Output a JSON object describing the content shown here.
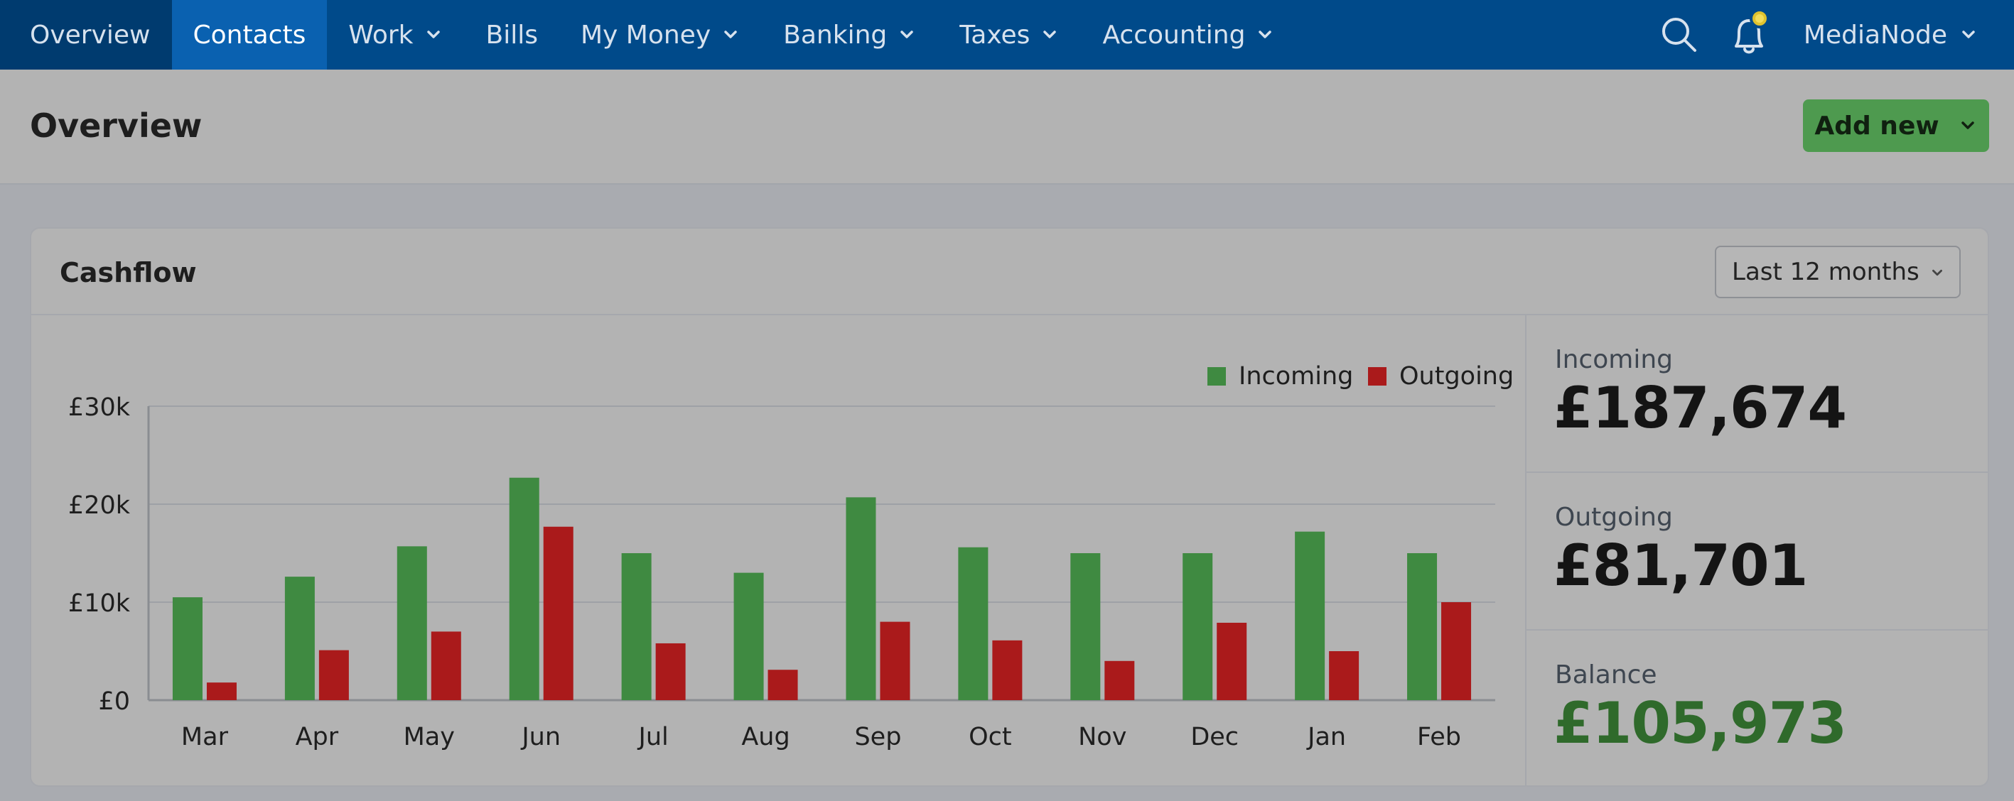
{
  "nav": {
    "items": [
      {
        "label": "Overview",
        "dropdown": false,
        "state": "home"
      },
      {
        "label": "Contacts",
        "dropdown": false,
        "state": "active"
      },
      {
        "label": "Work",
        "dropdown": true,
        "state": ""
      },
      {
        "label": "Bills",
        "dropdown": false,
        "state": ""
      },
      {
        "label": "My Money",
        "dropdown": true,
        "state": ""
      },
      {
        "label": "Banking",
        "dropdown": true,
        "state": ""
      },
      {
        "label": "Taxes",
        "dropdown": true,
        "state": ""
      },
      {
        "label": "Accounting",
        "dropdown": true,
        "state": ""
      }
    ],
    "icons": [
      "search-icon",
      "notification-bell-icon"
    ],
    "user": "MediaNode",
    "colors": {
      "bar": "#004a8a",
      "active": "#0a61b0",
      "badge": "#e0c22e"
    }
  },
  "page": {
    "title": "Overview",
    "add_button": "Add new"
  },
  "cashflow": {
    "title": "Cashflow",
    "period": "Last 12 months",
    "stats": {
      "incoming_label": "Incoming",
      "incoming_value": "£187,674",
      "outgoing_label": "Outgoing",
      "outgoing_value": "£81,701",
      "balance_label": "Balance",
      "balance_value": "£105,973"
    }
  },
  "chart_data": {
    "type": "bar",
    "categories": [
      "Mar",
      "Apr",
      "May",
      "Jun",
      "Jul",
      "Aug",
      "Sep",
      "Oct",
      "Nov",
      "Dec",
      "Jan",
      "Feb"
    ],
    "series": [
      {
        "name": "Incoming",
        "color": "#3f8a41",
        "values": [
          10500,
          12600,
          15700,
          22700,
          15000,
          13000,
          20700,
          15600,
          15000,
          15000,
          17200,
          15000
        ]
      },
      {
        "name": "Outgoing",
        "color": "#aa1a1b",
        "values": [
          1800,
          5100,
          7000,
          17700,
          5800,
          3100,
          8000,
          6100,
          4000,
          7900,
          5000,
          10000
        ]
      }
    ],
    "ylim": [
      0,
      30000
    ],
    "yticks": [
      0,
      10000,
      20000,
      30000
    ],
    "ytick_labels": [
      "£0",
      "£10k",
      "£20k",
      "£30k"
    ],
    "grid": true,
    "legend": "top-right",
    "xlabel": "",
    "ylabel": ""
  }
}
